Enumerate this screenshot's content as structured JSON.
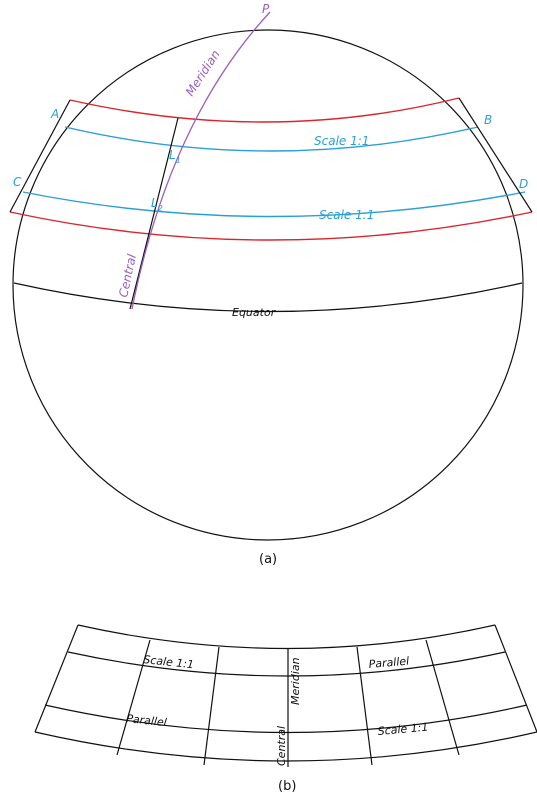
{
  "figure_a": {
    "points": {
      "P": "P",
      "A": "A",
      "B": "B",
      "C": "C",
      "D": "D",
      "L1": "L",
      "L1_sub": "1",
      "L2": "L",
      "L2_sub": "2"
    },
    "labels": {
      "meridian": "Meridian",
      "central": "Central",
      "scale_upper": "Scale 1:1",
      "scale_lower": "Scale 1:1",
      "equator": "Equator"
    },
    "caption": "(a)",
    "colors": {
      "circle": "#111111",
      "red": "#d9262e",
      "blue": "#2a9fd6",
      "purple": "#9b5fc0",
      "black": "#111111"
    }
  },
  "figure_b": {
    "labels": {
      "scale_left": "Scale 1:1",
      "parallel_right": "Parallel",
      "parallel_left": "Parallel",
      "scale_right": "Scale 1:1",
      "central": "Central",
      "meridian": "Meridian"
    },
    "caption": "(b)"
  }
}
